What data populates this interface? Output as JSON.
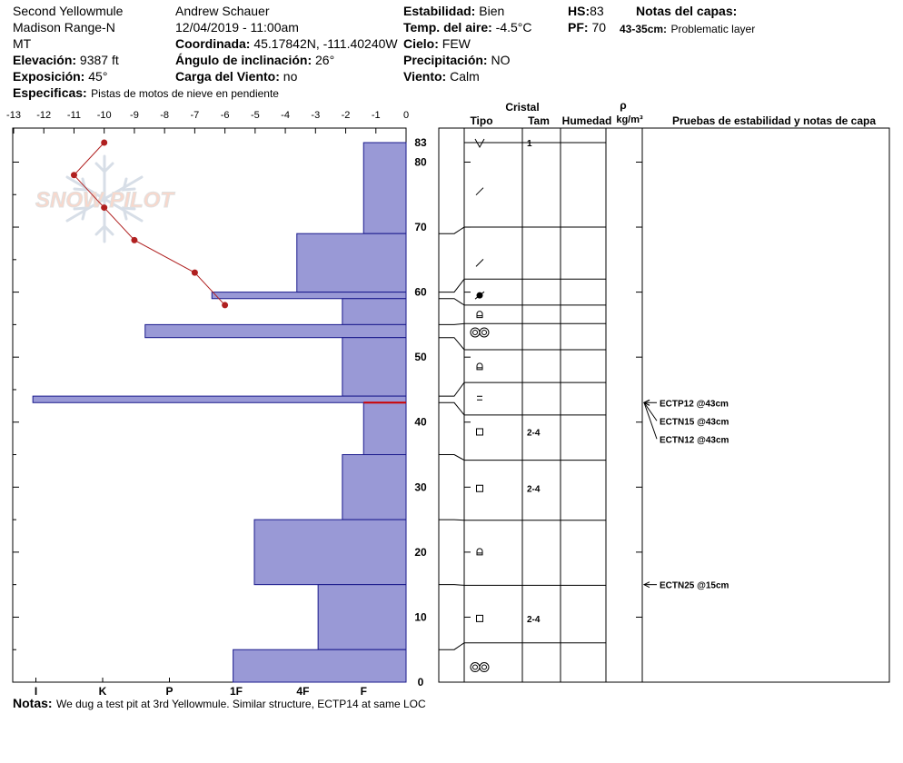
{
  "header": {
    "location": "Second Yellowmule",
    "range": "Madison Range-N",
    "state": "MT",
    "elevation_label": "Elevación:",
    "elevation_value": "9387 ft",
    "aspect_label": "Exposición:",
    "aspect_value": "45°",
    "specifics_label": "Especificas:",
    "specifics_value": "Pistas de motos de nieve en pendiente",
    "observer": "Andrew Schauer",
    "datetime": "12/04/2019 - 11:00am",
    "coord_label": "Coordinada:",
    "coord_value": "45.17842N, -111.40240W",
    "incline_label": "Ángulo de inclinación:",
    "incline_value": "26°",
    "wind_load_label": "Carga del Viento:",
    "wind_load_value": "no",
    "stability_label": "Estabilidad:",
    "stability_value": "Bien",
    "air_temp_label": "Temp. del aire:",
    "air_temp_value": "-4.5°C",
    "sky_label": "Cielo:",
    "sky_value": "FEW",
    "precip_label": "Precipitación:",
    "precip_value": "NO",
    "wind_label": "Viento:",
    "wind_value": "Calm",
    "hs_label": "HS:",
    "hs_value": "83",
    "pf_label": "PF:",
    "pf_value": "70",
    "layer_notes_title": "Notas del capas:",
    "layer_note_depth": "43-35cm:",
    "layer_note_text": "Problematic layer"
  },
  "notes": {
    "label": "Notas:",
    "text": "We dug a test pit at 3rd Yellowmule. Similar structure, ECTP14 at same LOC"
  },
  "logo_text": "SNOW PILOT",
  "table": {
    "col_cristal": "Cristal",
    "col_tipo": "Tipo",
    "col_tam": "Tam",
    "col_humedad": "Humedad",
    "col_rho": "ρ",
    "col_density_unit": "kg/m³",
    "col_tests": "Pruebas de estabilidad y notas de capa"
  },
  "chart_data": {
    "type": "bar",
    "title": "",
    "temp_axis": {
      "range": [
        -13,
        0
      ],
      "ticks": [
        "-13",
        "-12",
        "-11",
        "-10",
        "-9",
        "-8",
        "-7",
        "-6",
        "-5",
        "-4",
        "-3",
        "-2",
        "-1",
        "0"
      ]
    },
    "hardness_axis": {
      "ticks": [
        "I",
        "K",
        "P",
        "1F",
        "4F",
        "F"
      ],
      "tick_values": [
        12.2,
        10,
        7.8,
        5.6,
        3.4,
        1.4
      ]
    },
    "height_axis": {
      "range": [
        0,
        83
      ],
      "ticks": [
        "83",
        "80",
        "70",
        "60",
        "50",
        "40",
        "30",
        "20",
        "10",
        "0"
      ],
      "tick_values": [
        83,
        80,
        70,
        60,
        50,
        40,
        30,
        20,
        10,
        0
      ]
    },
    "hardness_layers": [
      {
        "top": 83,
        "bottom": 69,
        "value": 1.4
      },
      {
        "top": 69,
        "bottom": 60,
        "value": 3.6
      },
      {
        "top": 60,
        "bottom": 59,
        "value": 6.4
      },
      {
        "top": 59,
        "bottom": 55,
        "value": 2.1
      },
      {
        "top": 55,
        "bottom": 53,
        "value": 8.6
      },
      {
        "top": 53,
        "bottom": 44,
        "value": 2.1
      },
      {
        "top": 44,
        "bottom": 43,
        "value": 12.3
      },
      {
        "top": 43,
        "bottom": 35,
        "value": 1.4
      },
      {
        "top": 35,
        "bottom": 25,
        "value": 2.1
      },
      {
        "top": 25,
        "bottom": 15,
        "value": 5.0
      },
      {
        "top": 15,
        "bottom": 5,
        "value": 2.9
      },
      {
        "top": 5,
        "bottom": 0,
        "value": 5.7
      }
    ],
    "problem_layer_height": 43,
    "temperature_profile": [
      {
        "height": 83,
        "temp": -10.0
      },
      {
        "height": 78,
        "temp": -11.0
      },
      {
        "height": 73,
        "temp": -10.0
      },
      {
        "height": 68,
        "temp": -9.0
      },
      {
        "height": 63,
        "temp": -7.0
      },
      {
        "height": 58,
        "temp": -6.0
      }
    ],
    "layer_boundaries": [
      83,
      69,
      60,
      59,
      55,
      53,
      44,
      43,
      35,
      25,
      15,
      5,
      0
    ],
    "layers": [
      {
        "top": 83,
        "bottom": 83,
        "grain": "precip",
        "size": "1",
        "display_height": 83
      },
      {
        "top": 83,
        "bottom": 69,
        "grain": "decomposed",
        "size": "",
        "display_height": 75.5
      },
      {
        "top": 69,
        "bottom": 60,
        "grain": "decomposed",
        "size": "",
        "display_height": 64.5
      },
      {
        "top": 60,
        "bottom": 59,
        "grain": "melt-freeze-crust",
        "size": "",
        "display_height": 59.5
      },
      {
        "top": 59,
        "bottom": 55,
        "grain": "rounded",
        "size": "",
        "display_height": 56.5
      },
      {
        "top": 55,
        "bottom": 53,
        "grain": "melt-forms",
        "size": "",
        "display_height": 53.8
      },
      {
        "top": 53,
        "bottom": 44,
        "grain": "rounded",
        "size": "",
        "display_height": 48.5
      },
      {
        "top": 44,
        "bottom": 43,
        "grain": "surface-hoar-layer",
        "size": "",
        "display_height": 43.7
      },
      {
        "top": 43,
        "bottom": 35,
        "grain": "faceted",
        "size": "2-4",
        "display_height": 38.5
      },
      {
        "top": 35,
        "bottom": 25,
        "grain": "faceted",
        "size": "2-4",
        "display_height": 29.8
      },
      {
        "top": 25,
        "bottom": 15,
        "grain": "rounded",
        "size": "",
        "display_height": 20
      },
      {
        "top": 15,
        "bottom": 5,
        "grain": "faceted",
        "size": "2-4",
        "display_height": 9.8
      },
      {
        "top": 5,
        "bottom": 0,
        "grain": "melt-forms",
        "size": "",
        "display_height": 2.3
      }
    ],
    "stability_tests": [
      {
        "label": "ECTP12 @43cm",
        "height": 43
      },
      {
        "label": "ECTN15 @43cm",
        "height": 43
      },
      {
        "label": "ECTN12 @43cm",
        "height": 43
      },
      {
        "label": "ECTN25 @15cm",
        "height": 15
      }
    ],
    "colors": {
      "hardness_fill": "#9999d6",
      "hardness_stroke": "#1a1a8c",
      "temp_line": "#b02020",
      "problem_line": "#cc0000"
    }
  }
}
